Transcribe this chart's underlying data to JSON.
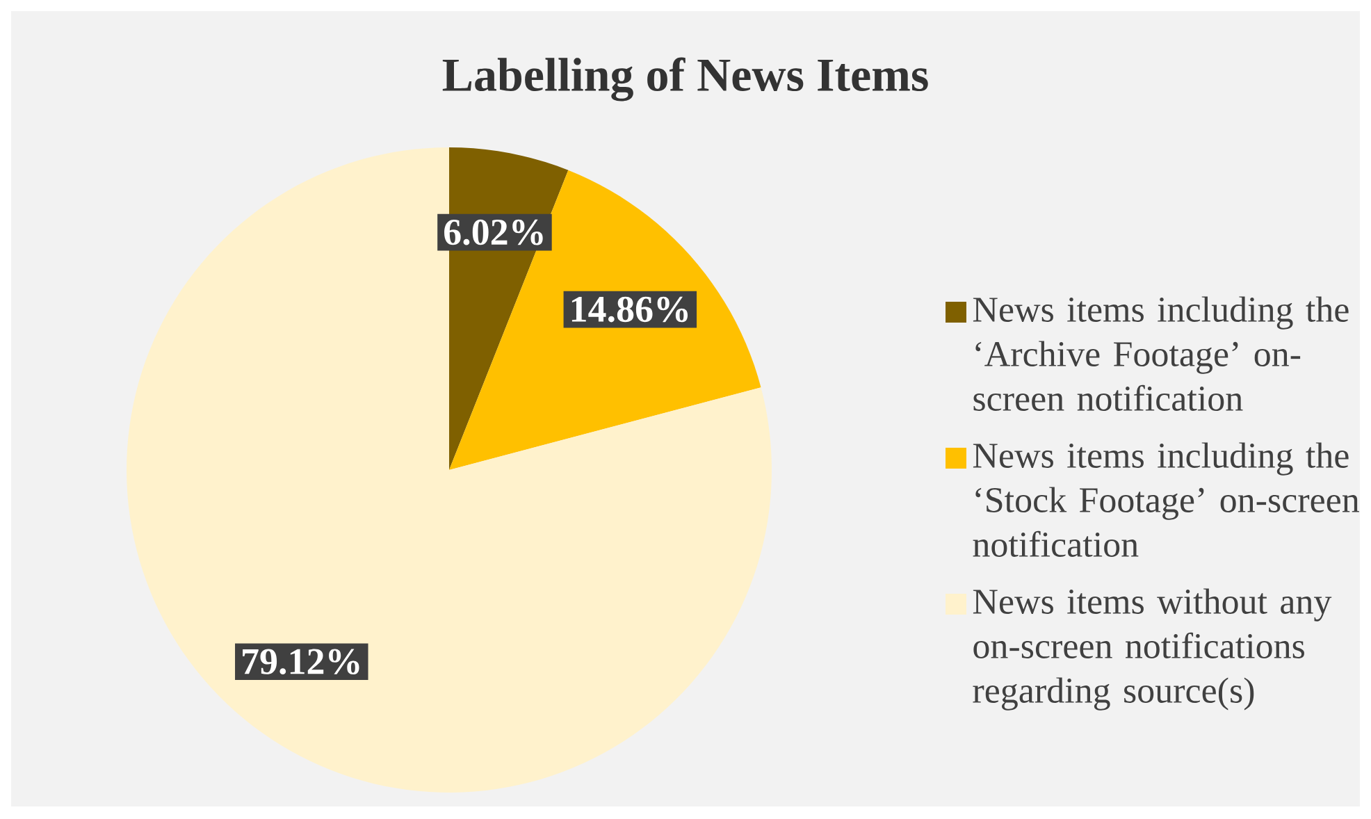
{
  "chart_data": {
    "type": "pie",
    "title": "Labelling of News Items",
    "categories": [
      "News items including the ‘Archive Footage’ on-screen notification",
      "News items including the ‘Stock Footage’ on-screen notification",
      "News items without any on-screen notifications regarding source(s)"
    ],
    "values": [
      6.02,
      14.86,
      79.12
    ],
    "colors": [
      "#7f6000",
      "#ffc000",
      "#fff2cc"
    ],
    "value_labels": [
      "6.02%",
      "14.86%",
      "79.12%"
    ],
    "legend": "right"
  }
}
